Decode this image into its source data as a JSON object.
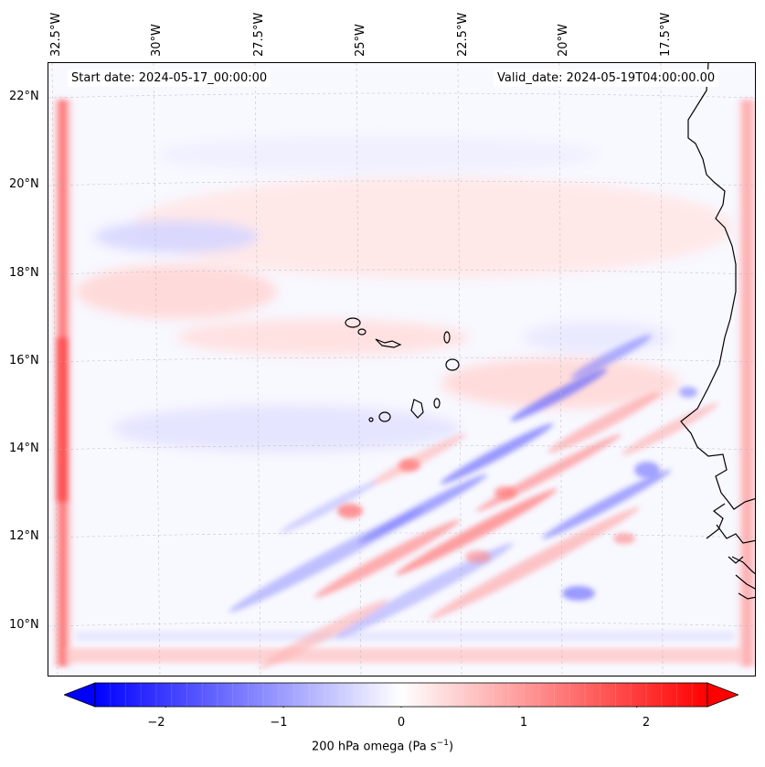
{
  "map": {
    "start_date_text": "Start date: 2024-05-17_00:00:00",
    "valid_date_text": "Valid_date: 2024-05-19T04:00:00.00",
    "longitude_labels": [
      "32.5°W",
      "30°W",
      "27.5°W",
      "25°W",
      "22.5°W",
      "20°W",
      "17.5°W"
    ],
    "latitude_labels": [
      "22°N",
      "20°N",
      "18°N",
      "16°N",
      "14°N",
      "12°N",
      "10°N"
    ],
    "features": [
      "Cape Verde islands",
      "West African coastline"
    ]
  },
  "colorbar": {
    "ticks": [
      "−2",
      "−1",
      "0",
      "1",
      "2"
    ],
    "tick_values": [
      -2,
      -1,
      0,
      1,
      2
    ],
    "range": [
      -2.6,
      2.6
    ],
    "colormap": "bwr",
    "label_main": "200 hPa omega (Pa s",
    "label_sup": "−1",
    "label_end": ")",
    "low_color": "#0000ff",
    "mid_color": "#ffffff",
    "high_color": "#ff0000"
  }
}
